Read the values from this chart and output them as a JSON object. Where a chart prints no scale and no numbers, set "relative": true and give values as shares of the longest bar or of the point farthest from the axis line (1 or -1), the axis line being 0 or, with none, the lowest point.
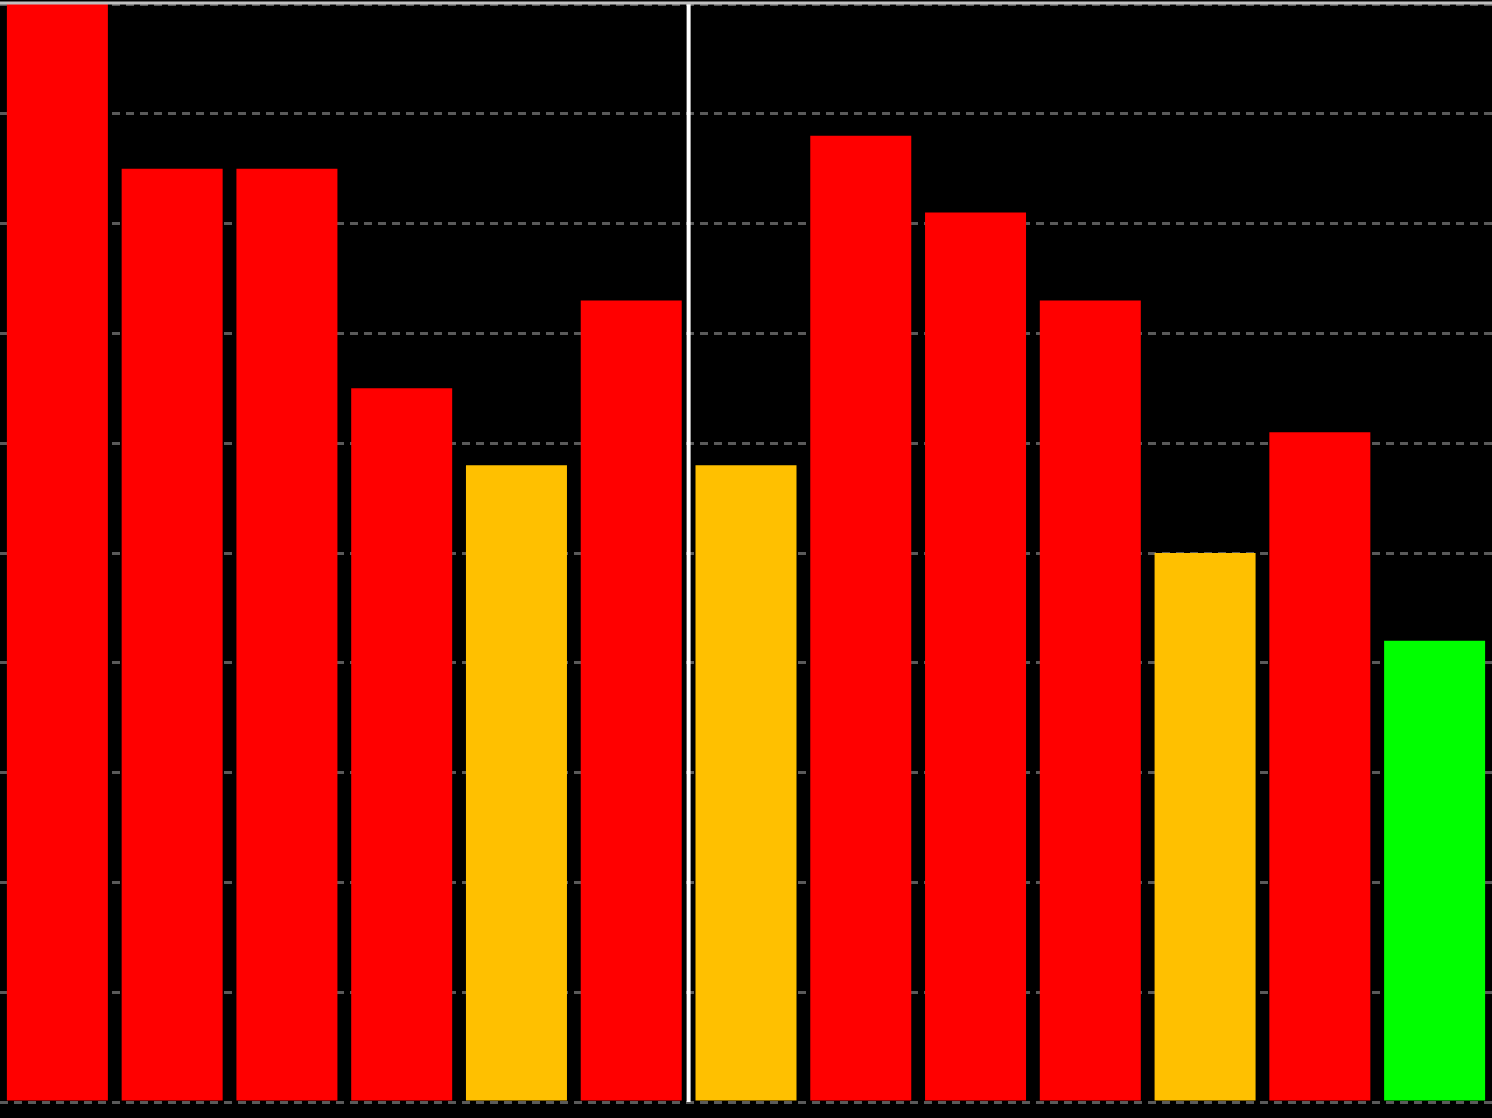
{
  "chart_data": {
    "type": "bar",
    "relative": true,
    "categories": [
      null,
      null,
      null,
      null,
      null,
      null,
      null,
      null,
      null,
      null,
      null,
      null,
      null
    ],
    "values": [
      1,
      0.85,
      0.85,
      0.65,
      0.58,
      0.73,
      0.58,
      0.88,
      0.81,
      0.73,
      0.5,
      0.61,
      0.42
    ],
    "colors": [
      "#ff0000",
      "#ff0000",
      "#ff0000",
      "#ff0000",
      "#ffc000",
      "#ff0000",
      "#ffc000",
      "#ff0000",
      "#ff0000",
      "#ff0000",
      "#ffc000",
      "#ff0000",
      "#00ff00"
    ],
    "grid": "y",
    "tick_labels": false
  }
}
